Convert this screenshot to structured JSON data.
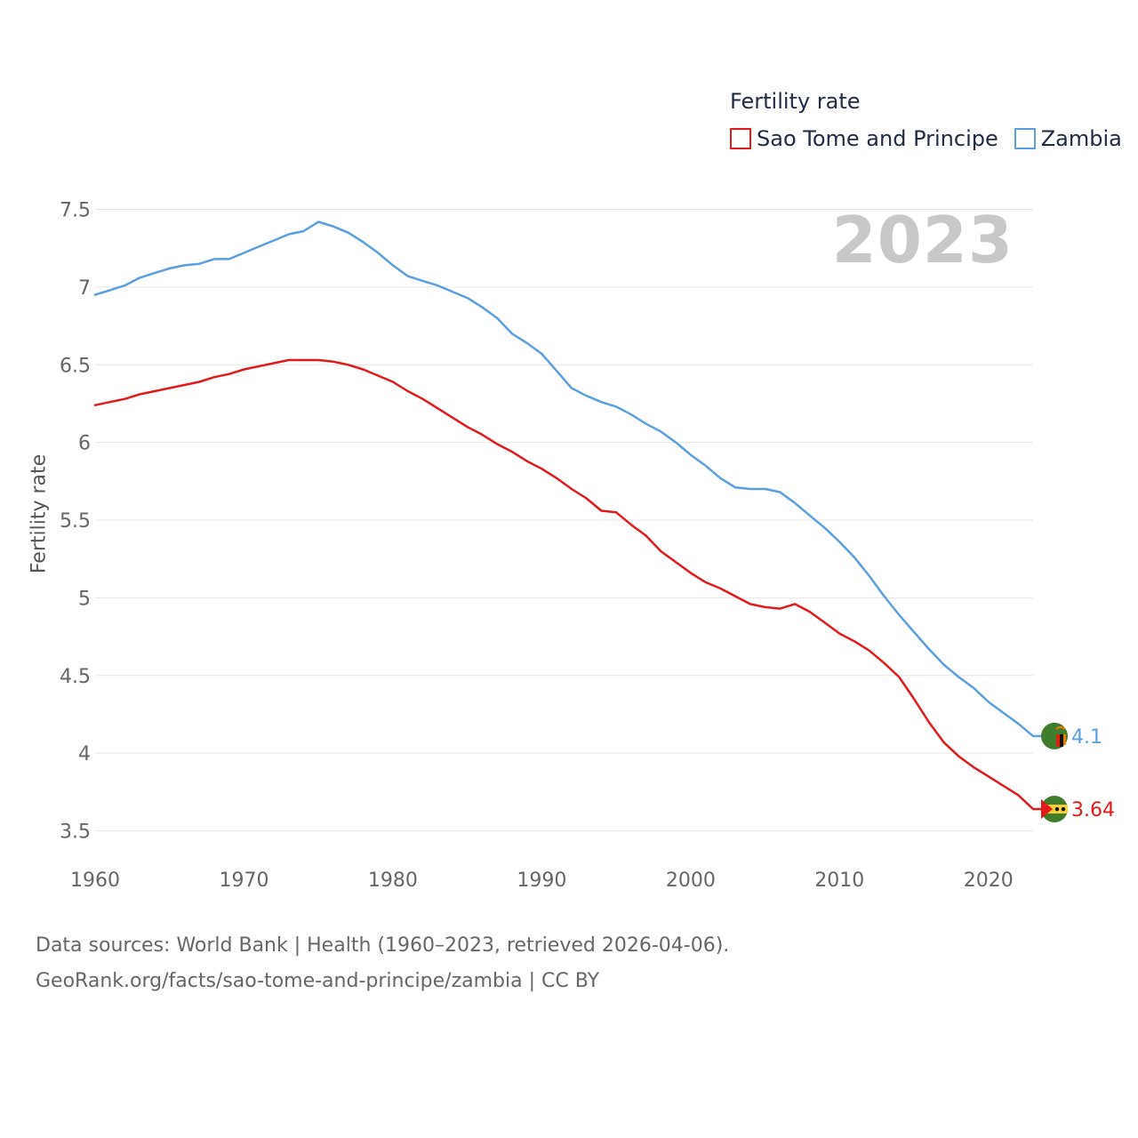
{
  "legend": {
    "title": "Fertility rate",
    "items": [
      {
        "label": "Sao Tome and Principe",
        "color": "#e31a1c"
      },
      {
        "label": "Zambia",
        "color": "#5aa0e0"
      }
    ]
  },
  "year_label": "2023",
  "source": {
    "line1": "Data sources: World Bank | Health (1960–2023, retrieved 2026-04-06).",
    "line2": "GeoRank.org/facts/sao-tome-and-principe/zambia | CC BY"
  },
  "chart_data": {
    "type": "line",
    "title": "Fertility rate",
    "xlabel": "",
    "ylabel": "Fertility rate",
    "xlim": [
      1960,
      2023
    ],
    "ylim": [
      3.4,
      7.6
    ],
    "grid": true,
    "legend_position": "top-right",
    "x_ticks": [
      "1960",
      "1970",
      "1980",
      "1990",
      "2000",
      "2010",
      "2020"
    ],
    "y_ticks": [
      "3.5",
      "4",
      "4.5",
      "5",
      "5.5",
      "6",
      "6.5",
      "7",
      "7.5"
    ],
    "x": [
      1960,
      1961,
      1962,
      1963,
      1964,
      1965,
      1966,
      1967,
      1968,
      1969,
      1970,
      1971,
      1972,
      1973,
      1974,
      1975,
      1976,
      1977,
      1978,
      1979,
      1980,
      1981,
      1982,
      1983,
      1984,
      1985,
      1986,
      1987,
      1988,
      1989,
      1990,
      1991,
      1992,
      1993,
      1994,
      1995,
      1996,
      1997,
      1998,
      1999,
      2000,
      2001,
      2002,
      2003,
      2004,
      2005,
      2006,
      2007,
      2008,
      2009,
      2010,
      2011,
      2012,
      2013,
      2014,
      2015,
      2016,
      2017,
      2018,
      2019,
      2020,
      2021,
      2022,
      2023
    ],
    "series": [
      {
        "name": "Sao Tome and Principe",
        "color": "#e31a1c",
        "end_label": "3.64",
        "icon": "sao-tome-flag-icon",
        "values": [
          6.24,
          6.26,
          6.28,
          6.31,
          6.33,
          6.35,
          6.37,
          6.39,
          6.42,
          6.44,
          6.47,
          6.49,
          6.51,
          6.53,
          6.53,
          6.53,
          6.52,
          6.5,
          6.47,
          6.43,
          6.39,
          6.33,
          6.28,
          6.22,
          6.16,
          6.1,
          6.05,
          5.99,
          5.94,
          5.88,
          5.83,
          5.77,
          5.7,
          5.64,
          5.56,
          5.55,
          5.47,
          5.4,
          5.3,
          5.23,
          5.16,
          5.1,
          5.06,
          5.01,
          4.96,
          4.94,
          4.93,
          4.96,
          4.91,
          4.84,
          4.77,
          4.72,
          4.66,
          4.58,
          4.49,
          4.35,
          4.2,
          4.07,
          3.98,
          3.91,
          3.85,
          3.79,
          3.73,
          3.64
        ]
      },
      {
        "name": "Zambia",
        "color": "#5aa0e0",
        "end_label": "4.1",
        "icon": "zambia-flag-icon",
        "values": [
          6.95,
          6.98,
          7.01,
          7.06,
          7.09,
          7.12,
          7.14,
          7.15,
          7.18,
          7.18,
          7.22,
          7.26,
          7.3,
          7.34,
          7.36,
          7.42,
          7.39,
          7.35,
          7.29,
          7.22,
          7.14,
          7.07,
          7.04,
          7.01,
          6.97,
          6.93,
          6.87,
          6.8,
          6.7,
          6.64,
          6.57,
          6.46,
          6.35,
          6.3,
          6.26,
          6.23,
          6.18,
          6.12,
          6.07,
          6.0,
          5.92,
          5.85,
          5.77,
          5.71,
          5.7,
          5.7,
          5.68,
          5.61,
          5.53,
          5.45,
          5.36,
          5.26,
          5.14,
          5.01,
          4.89,
          4.78,
          4.67,
          4.57,
          4.49,
          4.42,
          4.33,
          4.26,
          4.19,
          4.11
        ]
      }
    ]
  }
}
